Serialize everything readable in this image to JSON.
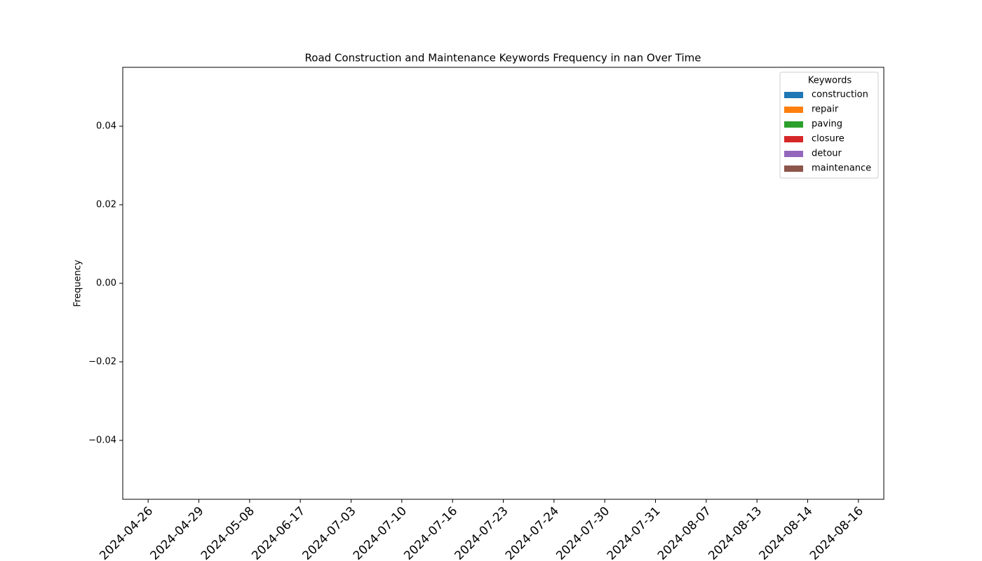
{
  "chart_data": {
    "type": "bar",
    "title": "Road Construction and Maintenance Keywords Frequency in nan Over Time",
    "ylabel": "Frequency",
    "legend_title": "Keywords",
    "legend": "upper right",
    "categories": [
      "2024-04-26",
      "2024-04-29",
      "2024-05-08",
      "2024-06-17",
      "2024-07-03",
      "2024-07-10",
      "2024-07-16",
      "2024-07-23",
      "2024-07-24",
      "2024-07-30",
      "2024-07-31",
      "2024-08-07",
      "2024-08-13",
      "2024-08-14",
      "2024-08-16"
    ],
    "series": [
      {
        "name": "construction",
        "color": "#1f77b4",
        "values": [
          0,
          0,
          0,
          0,
          0,
          0,
          0,
          0,
          0,
          0,
          0,
          0,
          0,
          0,
          0
        ]
      },
      {
        "name": "repair",
        "color": "#ff7f0e",
        "values": [
          0,
          0,
          0,
          0,
          0,
          0,
          0,
          0,
          0,
          0,
          0,
          0,
          0,
          0,
          0
        ]
      },
      {
        "name": "paving",
        "color": "#2ca02c",
        "values": [
          0,
          0,
          0,
          0,
          0,
          0,
          0,
          0,
          0,
          0,
          0,
          0,
          0,
          0,
          0
        ]
      },
      {
        "name": "closure",
        "color": "#d62728",
        "values": [
          0,
          0,
          0,
          0,
          0,
          0,
          0,
          0,
          0,
          0,
          0,
          0,
          0,
          0,
          0
        ]
      },
      {
        "name": "detour",
        "color": "#9467bd",
        "values": [
          0,
          0,
          0,
          0,
          0,
          0,
          0,
          0,
          0,
          0,
          0,
          0,
          0,
          0,
          0
        ]
      },
      {
        "name": "maintenance",
        "color": "#8c564b",
        "values": [
          0,
          0,
          0,
          0,
          0,
          0,
          0,
          0,
          0,
          0,
          0,
          0,
          0,
          0,
          0
        ]
      }
    ],
    "ylim": [
      -0.055,
      0.055
    ],
    "yticks": [
      {
        "value": -0.04,
        "label": "−0.04"
      },
      {
        "value": -0.02,
        "label": "−0.02"
      },
      {
        "value": 0,
        "label": "0.00"
      },
      0.02,
      0.04
    ]
  }
}
